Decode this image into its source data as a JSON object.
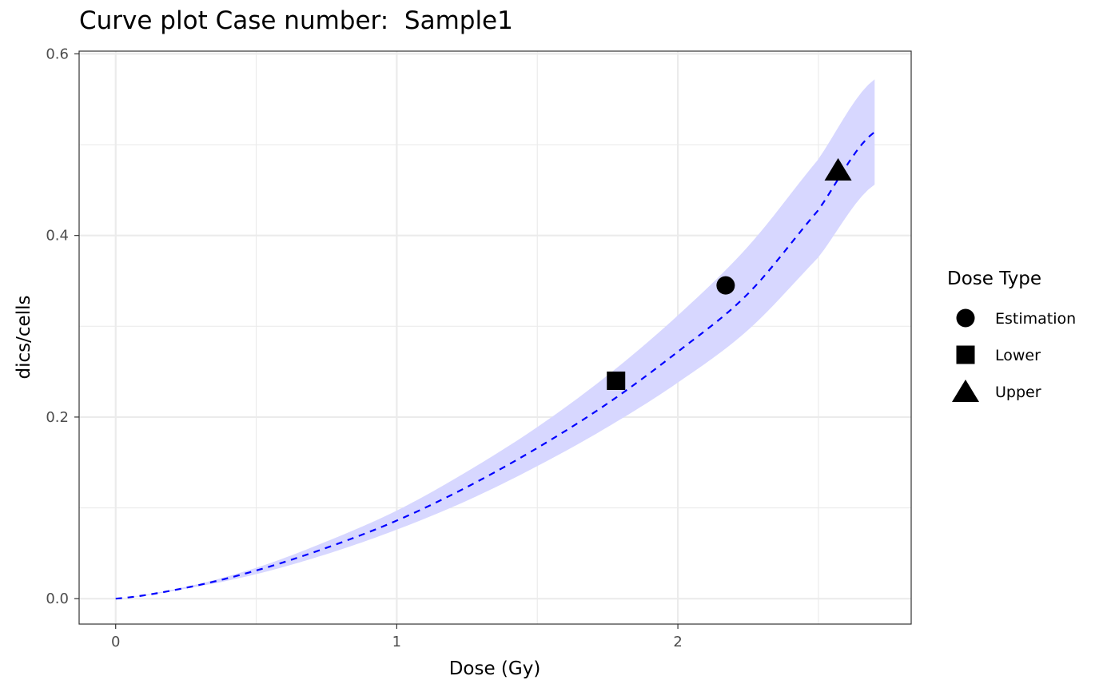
{
  "chart_data": {
    "type": "line",
    "title": "Curve plot Case number:  Sample1",
    "xlabel": "Dose (Gy)",
    "ylabel": "dics/cells",
    "xlim": [
      -0.13,
      2.83
    ],
    "ylim": [
      -0.028,
      0.603
    ],
    "x_ticks": [
      0,
      1,
      2
    ],
    "x_tick_labels": [
      "0",
      "1",
      "2"
    ],
    "y_ticks": [
      0.0,
      0.2,
      0.4,
      0.6
    ],
    "y_tick_labels": [
      "0.0",
      "0.2",
      "0.4",
      "0.6"
    ],
    "grid": true,
    "curve": {
      "style": "dashed",
      "color": "#0000ff",
      "x_range": [
        0,
        2.7
      ],
      "x": [
        0,
        0.25,
        0.5,
        0.75,
        1.0,
        1.25,
        1.5,
        1.75,
        2.0,
        2.25,
        2.5,
        2.7
      ],
      "y": [
        0.0,
        0.012,
        0.031,
        0.056,
        0.086,
        0.123,
        0.166,
        0.215,
        0.272,
        0.336,
        0.428,
        0.514
      ],
      "lower": [
        0.0,
        0.011,
        0.027,
        0.049,
        0.076,
        0.108,
        0.146,
        0.189,
        0.238,
        0.296,
        0.376,
        0.456
      ],
      "upper": [
        0.0,
        0.013,
        0.034,
        0.063,
        0.097,
        0.14,
        0.189,
        0.246,
        0.312,
        0.388,
        0.484,
        0.572
      ],
      "band_color": "#d7d7ff"
    },
    "points": [
      {
        "label": "Estimation",
        "x": 2.17,
        "y": 0.345,
        "shape": "circle"
      },
      {
        "label": "Lower",
        "x": 1.78,
        "y": 0.24,
        "shape": "square"
      },
      {
        "label": "Upper",
        "x": 2.57,
        "y": 0.472,
        "shape": "triangle"
      }
    ],
    "legend": {
      "title": "Dose Type",
      "position": "right",
      "items": [
        {
          "label": "Estimation",
          "shape": "circle"
        },
        {
          "label": "Lower",
          "shape": "square"
        },
        {
          "label": "Upper",
          "shape": "triangle"
        }
      ]
    }
  }
}
